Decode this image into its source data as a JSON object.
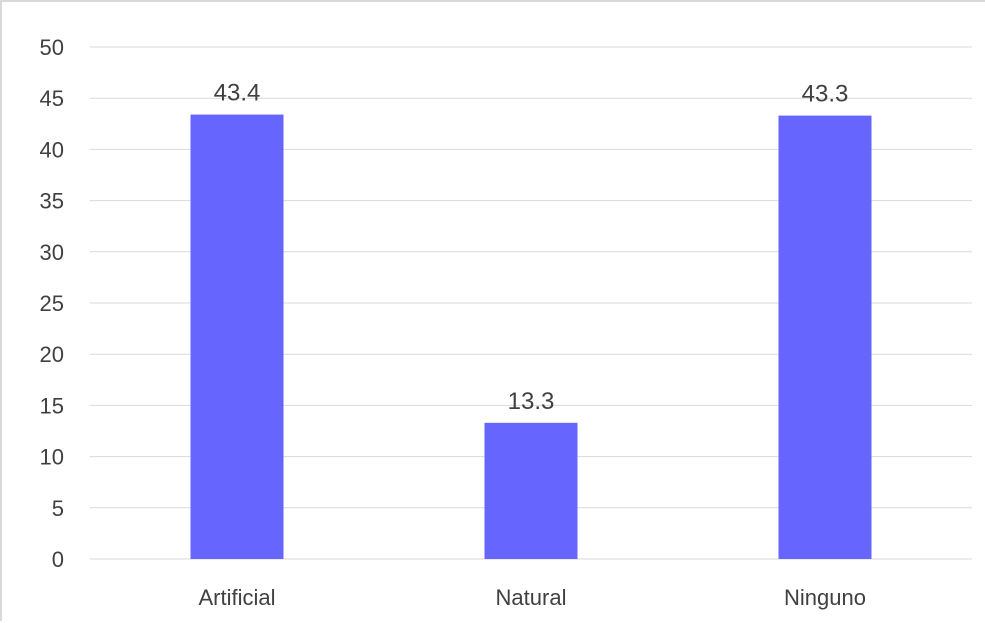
{
  "chart_data": {
    "type": "bar",
    "categories": [
      "Artificial",
      "Natural",
      "Ninguno"
    ],
    "values": [
      43.4,
      13.3,
      43.3
    ],
    "data_labels": [
      "43.4",
      "13.3",
      "43.3"
    ],
    "yticks": [
      0,
      5,
      10,
      15,
      20,
      25,
      30,
      35,
      40,
      45,
      50
    ],
    "ylim": [
      0,
      50
    ],
    "title": "",
    "xlabel": "",
    "ylabel": "",
    "grid": true,
    "legend": "none",
    "bar_color": "#6666ff",
    "grid_color": "#d9d9d9"
  }
}
